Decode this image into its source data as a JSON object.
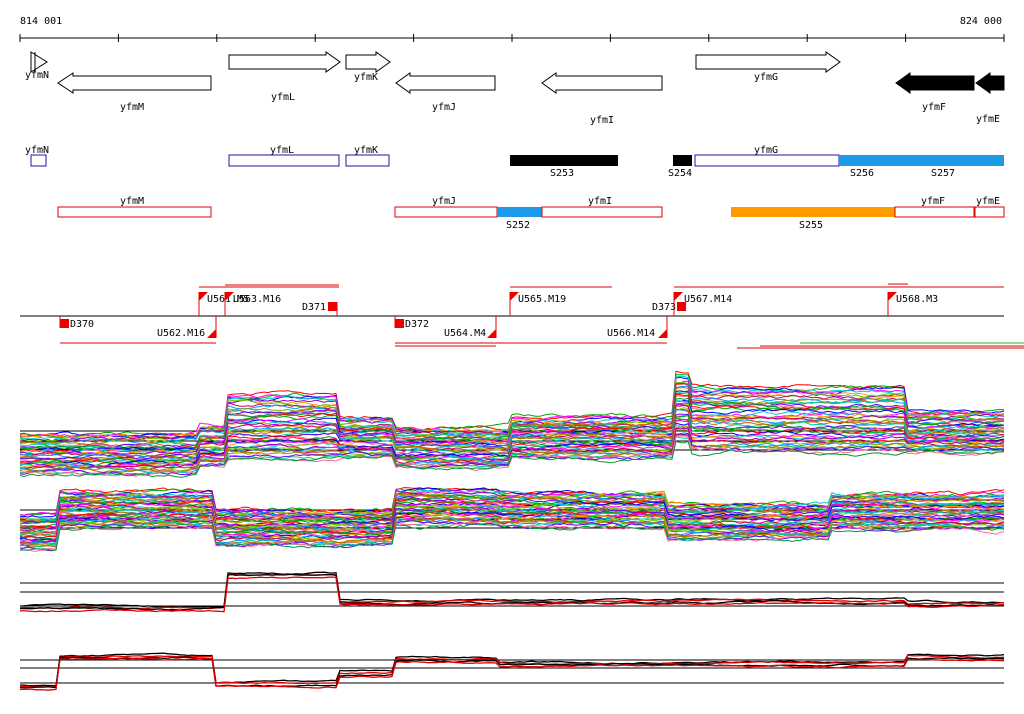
{
  "ruler": {
    "start_label": "814 001",
    "end_label": "824 000"
  },
  "colors": {
    "gene_outline": "#000000",
    "gene_filled": "#000000",
    "cds_blue": "#1a1aa8",
    "cds_red": "#e00000",
    "segment_black": "#000000",
    "segment_blue": "#1e9be8",
    "segment_orange": "#ff9a00",
    "marker_red": "#ee0000",
    "profile_mean_a": "#000000",
    "profile_mean_b": "#e00000",
    "profile_palette": [
      "#ff0000",
      "#00aa00",
      "#0000ff",
      "#ff00ff",
      "#00cccc",
      "#ff9900",
      "#9900cc",
      "#66cc00",
      "#cc0066",
      "#0099ff",
      "#999900",
      "#cc6600",
      "#00cc99",
      "#6600ff",
      "#ff6699",
      "#009933"
    ]
  },
  "genes": [
    {
      "label": "yfmN",
      "strand": "+",
      "filled": false
    },
    {
      "label": "yfmM",
      "strand": "-",
      "filled": false
    },
    {
      "label": "yfmL",
      "strand": "+",
      "filled": false
    },
    {
      "label": "yfmK",
      "strand": "+",
      "filled": false
    },
    {
      "label": "yfmJ",
      "strand": "-",
      "filled": false
    },
    {
      "label": "yfmI",
      "strand": "-",
      "filled": false
    },
    {
      "label": "yfmG",
      "strand": "+",
      "filled": false
    },
    {
      "label": "yfmF",
      "strand": "-",
      "filled": true
    },
    {
      "label": "yfmE",
      "strand": "-",
      "filled": true
    }
  ],
  "cds_plus": [
    "yfmN",
    "yfmL",
    "yfmK",
    "yfmG"
  ],
  "segments_plus": [
    "S253",
    "S254",
    "S256",
    "S257"
  ],
  "cds_minus": [
    "yfmM",
    "yfmJ",
    "yfmI",
    "yfmF",
    "yfmE"
  ],
  "segments_minus": [
    "S252",
    "S255"
  ],
  "markers": [
    "U561.M5",
    "U563.M16",
    "D371",
    "U565.M19",
    "D373",
    "U567.M14",
    "U568.M3",
    "D370",
    "U562.M16",
    "D372",
    "U564.M4",
    "U566.M14"
  ]
}
